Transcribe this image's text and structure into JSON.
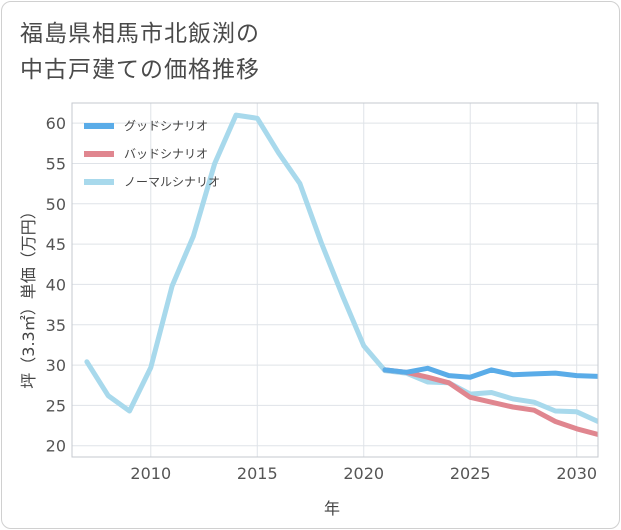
{
  "chart_data": {
    "type": "line",
    "title_line1": "福島県相馬市北飯渕の",
    "title_line2": "中古戸建ての価格推移",
    "xlabel": "年",
    "ylabel": "坪（3.3㎡）単価（万円）",
    "xlim": [
      2006.3,
      2031
    ],
    "ylim": [
      18.6,
      62.5
    ],
    "xticks": [
      2010,
      2015,
      2020,
      2025,
      2030
    ],
    "yticks": [
      20,
      25,
      30,
      35,
      40,
      45,
      50,
      55,
      60
    ],
    "grid": true,
    "legend_position": "top-left",
    "series": [
      {
        "name": "グッドシナリオ",
        "color": "#5aace8",
        "x": [
          2021,
          2022,
          2023,
          2024,
          2025,
          2026,
          2027,
          2028,
          2029,
          2030,
          2031
        ],
        "values": [
          29.4,
          29.1,
          29.6,
          28.7,
          28.5,
          29.4,
          28.8,
          28.9,
          29.0,
          28.7,
          28.6
        ]
      },
      {
        "name": "バッドシナリオ",
        "color": "#e0868f",
        "x": [
          2021,
          2022,
          2023,
          2024,
          2025,
          2026,
          2027,
          2028,
          2029,
          2030,
          2031
        ],
        "values": [
          29.4,
          29.1,
          28.5,
          27.8,
          26.0,
          25.4,
          24.8,
          24.4,
          23.0,
          22.1,
          21.4
        ]
      },
      {
        "name": "ノーマルシナリオ",
        "color": "#a8d9ec",
        "x": [
          2007,
          2008,
          2009,
          2010,
          2011,
          2012,
          2013,
          2014,
          2015,
          2016,
          2017,
          2018,
          2019,
          2020,
          2021,
          2022,
          2023,
          2024,
          2025,
          2026,
          2027,
          2028,
          2029,
          2030,
          2031
        ],
        "values": [
          30.4,
          26.2,
          24.3,
          29.7,
          39.8,
          46.0,
          55.0,
          61.0,
          60.6,
          56.3,
          52.5,
          45.2,
          38.6,
          32.4,
          29.3,
          29.0,
          27.9,
          27.8,
          26.4,
          26.6,
          25.8,
          25.4,
          24.3,
          24.2,
          23.0
        ]
      }
    ]
  }
}
